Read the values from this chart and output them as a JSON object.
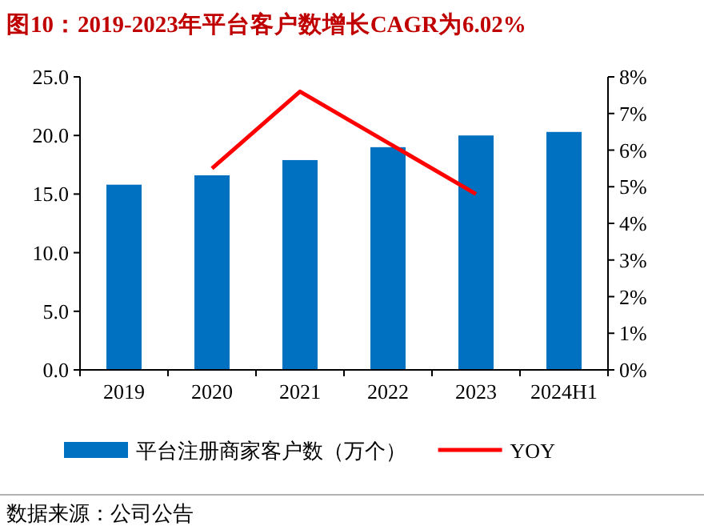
{
  "chart_data": {
    "type": "bar",
    "title": "图10：2019-2023年平台客户数增长CAGR为6.02%",
    "categories": [
      "2019",
      "2020",
      "2021",
      "2022",
      "2023",
      "2024H1"
    ],
    "series": [
      {
        "name": "平台注册商家客户数（万个）",
        "color": "#0070c0",
        "values": [
          15.8,
          16.6,
          17.9,
          19.0,
          20.0,
          20.3
        ]
      },
      {
        "name": "YOY",
        "type": "line",
        "axis": "y2",
        "color": "#ff0000",
        "values": [
          null,
          5.5,
          7.6,
          6.2,
          4.8,
          null
        ]
      }
    ],
    "ylim": [
      0,
      25
    ],
    "yticks": [
      {
        "value": 0,
        "label": "0.0"
      },
      {
        "value": 5,
        "label": "5.0"
      },
      {
        "value": 10,
        "label": "10.0"
      },
      {
        "value": 15,
        "label": "15.0"
      },
      {
        "value": 20,
        "label": "20.0"
      },
      {
        "value": 25,
        "label": "25.0"
      }
    ],
    "y2lim": [
      0,
      8
    ],
    "y2ticks": [
      {
        "value": 0,
        "label": "0%"
      },
      {
        "value": 1,
        "label": "1%"
      },
      {
        "value": 2,
        "label": "2%"
      },
      {
        "value": 3,
        "label": "3%"
      },
      {
        "value": 4,
        "label": "4%"
      },
      {
        "value": 5,
        "label": "5%"
      },
      {
        "value": 6,
        "label": "6%"
      },
      {
        "value": 7,
        "label": "7%"
      },
      {
        "value": 8,
        "label": "8%"
      }
    ],
    "legend": "bottom",
    "grid": false,
    "annotations": [
      "数据来源：公司公告"
    ]
  }
}
